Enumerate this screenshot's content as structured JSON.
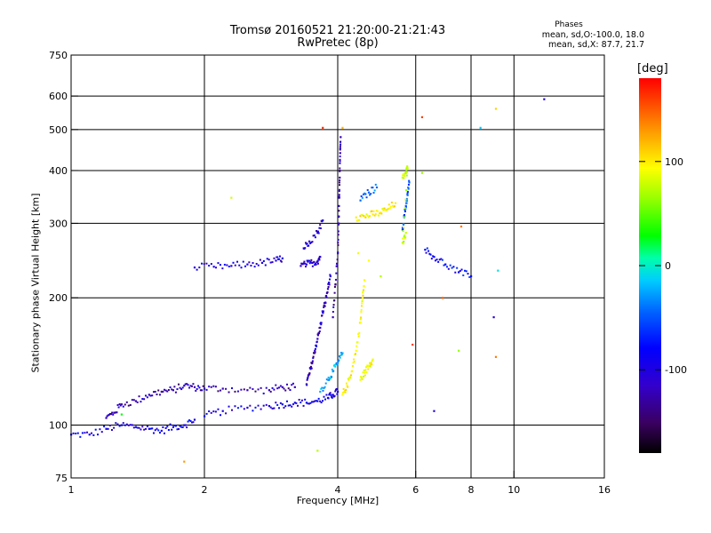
{
  "chart_data": {
    "type": "scatter",
    "title": "Tromsø 20160521 21:20:00-21:21:43",
    "subtitle": "RwPretec (8p)",
    "xlabel": "Frequency [MHz]",
    "ylabel": "Stationary phase Virtual Height [km]",
    "x_scale": "log",
    "y_scale": "log",
    "xlim": [
      1,
      16
    ],
    "ylim": [
      75,
      750
    ],
    "x_ticks": [
      "1",
      "2",
      "4",
      "6",
      "8",
      "10",
      "16"
    ],
    "x_tick_values": [
      1,
      2,
      4,
      6,
      8,
      10,
      16
    ],
    "x_grid": [
      2,
      4,
      6,
      8,
      10
    ],
    "y_ticks": [
      "75",
      "100",
      "200",
      "300",
      "400",
      "500",
      "600",
      "750"
    ],
    "y_tick_values": [
      75,
      100,
      200,
      300,
      400,
      500,
      600,
      750
    ],
    "y_grid": [
      100,
      200,
      300,
      400,
      500,
      600
    ],
    "grid": true,
    "stats": {
      "heading": "Phases",
      "o_line": "mean, sd,O:-100.0, 18.0",
      "x_line": "mean, sd,X:  87.7, 21.7"
    },
    "colorbar": {
      "label": "[deg]",
      "range": [
        -180,
        180
      ],
      "ticks": [
        "100",
        "0",
        "-100"
      ],
      "tick_values": [
        100,
        0,
        -100
      ]
    },
    "traces": [
      {
        "phase": -100,
        "points": [
          [
            1.0,
            95
          ],
          [
            1.1,
            95
          ],
          [
            1.2,
            98
          ],
          [
            1.3,
            100
          ],
          [
            1.4,
            99
          ],
          [
            1.5,
            98
          ],
          [
            1.6,
            97
          ],
          [
            1.7,
            99
          ],
          [
            1.8,
            100
          ],
          [
            1.9,
            103
          ]
        ]
      },
      {
        "phase": -120,
        "points": [
          [
            1.2,
            104
          ],
          [
            1.25,
            107
          ],
          [
            1.3,
            112
          ],
          [
            1.4,
            114
          ],
          [
            1.5,
            118
          ],
          [
            1.6,
            120
          ],
          [
            1.7,
            121
          ],
          [
            1.8,
            124
          ],
          [
            1.9,
            123
          ],
          [
            2.0,
            122
          ],
          [
            2.2,
            122
          ],
          [
            2.5,
            121
          ],
          [
            2.8,
            121
          ],
          [
            3.0,
            123
          ],
          [
            3.2,
            123
          ]
        ]
      },
      {
        "phase": -100,
        "points": [
          [
            2.0,
            105
          ],
          [
            2.2,
            108
          ],
          [
            2.5,
            110
          ],
          [
            2.8,
            111
          ],
          [
            3.0,
            112
          ],
          [
            3.2,
            113
          ],
          [
            3.4,
            113
          ],
          [
            3.6,
            114
          ],
          [
            3.8,
            116
          ],
          [
            3.9,
            118
          ],
          [
            4.0,
            120
          ]
        ]
      },
      {
        "phase": -115,
        "points": [
          [
            3.4,
            125
          ],
          [
            3.45,
            132
          ],
          [
            3.5,
            140
          ],
          [
            3.55,
            150
          ],
          [
            3.6,
            160
          ],
          [
            3.65,
            170
          ],
          [
            3.7,
            185
          ],
          [
            3.75,
            195
          ],
          [
            3.8,
            210
          ],
          [
            3.85,
            225
          ]
        ]
      },
      {
        "phase": -105,
        "points": [
          [
            1.9,
            236
          ],
          [
            2.1,
            237
          ],
          [
            2.3,
            238
          ],
          [
            2.5,
            240
          ],
          [
            2.7,
            242
          ],
          [
            2.9,
            245
          ],
          [
            3.0,
            248
          ]
        ]
      },
      {
        "phase": -110,
        "points": [
          [
            3.3,
            238
          ],
          [
            3.4,
            240
          ],
          [
            3.5,
            242
          ],
          [
            3.6,
            244
          ],
          [
            3.65,
            250
          ]
        ]
      },
      {
        "phase": -110,
        "points": [
          [
            3.35,
            262
          ],
          [
            3.45,
            272
          ],
          [
            3.6,
            285
          ],
          [
            3.7,
            305
          ]
        ]
      },
      {
        "phase": -120,
        "points": [
          [
            3.9,
            180
          ],
          [
            3.95,
            215
          ],
          [
            4.0,
            255
          ],
          [
            4.02,
            300
          ],
          [
            4.03,
            345
          ],
          [
            4.04,
            385
          ],
          [
            4.05,
            440
          ],
          [
            4.06,
            480
          ]
        ]
      },
      {
        "phase": -40,
        "points": [
          [
            3.65,
            120
          ],
          [
            3.8,
            128
          ],
          [
            3.9,
            134
          ],
          [
            4.0,
            140
          ],
          [
            4.1,
            148
          ]
        ]
      },
      {
        "phase": 95,
        "points": [
          [
            4.1,
            118
          ],
          [
            4.2,
            124
          ],
          [
            4.3,
            134
          ],
          [
            4.4,
            150
          ],
          [
            4.5,
            175
          ],
          [
            4.55,
            200
          ],
          [
            4.6,
            220
          ]
        ]
      },
      {
        "phase": 90,
        "points": [
          [
            4.5,
            128
          ],
          [
            4.6,
            133
          ],
          [
            4.7,
            138
          ],
          [
            4.8,
            143
          ]
        ]
      },
      {
        "phase": 100,
        "points": [
          [
            4.4,
            310
          ],
          [
            4.6,
            312
          ],
          [
            4.8,
            315
          ],
          [
            5.0,
            318
          ],
          [
            5.2,
            325
          ],
          [
            5.4,
            335
          ]
        ]
      },
      {
        "phase": -60,
        "points": [
          [
            4.5,
            340
          ],
          [
            4.7,
            355
          ],
          [
            4.9,
            365
          ]
        ]
      },
      {
        "phase": -60,
        "points": [
          [
            5.6,
            290
          ],
          [
            5.65,
            310
          ],
          [
            5.7,
            330
          ],
          [
            5.75,
            350
          ],
          [
            5.8,
            375
          ]
        ]
      },
      {
        "phase": 75,
        "points": [
          [
            5.6,
            385
          ],
          [
            5.7,
            395
          ],
          [
            5.75,
            405
          ],
          [
            5.6,
            270
          ],
          [
            5.7,
            285
          ]
        ]
      },
      {
        "phase": -90,
        "points": [
          [
            6.3,
            260
          ],
          [
            6.6,
            250
          ],
          [
            7.0,
            240
          ],
          [
            7.5,
            230
          ],
          [
            8.0,
            225
          ]
        ]
      }
    ],
    "isolated_points": [
      [
        3.7,
        505,
        165
      ],
      [
        4.1,
        505,
        120
      ],
      [
        6.2,
        535,
        160
      ],
      [
        8.4,
        505,
        -30
      ],
      [
        9.1,
        560,
        110
      ],
      [
        11.7,
        590,
        -110
      ],
      [
        2.3,
        345,
        80
      ],
      [
        7.6,
        295,
        140
      ],
      [
        4.45,
        255,
        90
      ],
      [
        9.2,
        232,
        -20
      ],
      [
        6.9,
        200,
        150
      ],
      [
        9.0,
        180,
        -110
      ],
      [
        7.5,
        150,
        60
      ],
      [
        9.1,
        145,
        140
      ],
      [
        3.6,
        87,
        70
      ],
      [
        6.2,
        395,
        60
      ],
      [
        6.6,
        108,
        -110
      ],
      [
        5.9,
        155,
        160
      ],
      [
        1.8,
        82,
        130
      ],
      [
        4.7,
        245,
        95
      ],
      [
        1.3,
        106,
        20
      ],
      [
        5.0,
        225,
        70
      ]
    ]
  }
}
